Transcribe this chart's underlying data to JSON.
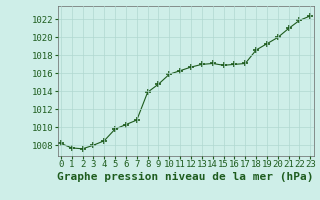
{
  "x": [
    0,
    1,
    2,
    3,
    4,
    5,
    6,
    7,
    8,
    9,
    10,
    11,
    12,
    13,
    14,
    15,
    16,
    17,
    18,
    19,
    20,
    21,
    22,
    23
  ],
  "y": [
    1008.2,
    1007.7,
    1007.6,
    1008.0,
    1008.5,
    1009.8,
    1010.3,
    1010.8,
    1013.9,
    1014.8,
    1015.9,
    1016.3,
    1016.7,
    1017.0,
    1017.1,
    1016.9,
    1017.0,
    1017.1,
    1018.6,
    1019.3,
    1020.0,
    1021.0,
    1021.9,
    1022.4
  ],
  "line_color": "#1e5c1e",
  "marker": "+",
  "marker_size": 5,
  "marker_linewidth": 1.2,
  "bg_color": "#ceeee8",
  "grid_color": "#b0d8d0",
  "title": "Graphe pression niveau de la mer (hPa)",
  "ylabel_ticks": [
    1008,
    1010,
    1012,
    1014,
    1016,
    1018,
    1020,
    1022
  ],
  "xlabel_ticks": [
    0,
    1,
    2,
    3,
    4,
    5,
    6,
    7,
    8,
    9,
    10,
    11,
    12,
    13,
    14,
    15,
    16,
    17,
    18,
    19,
    20,
    21,
    22,
    23
  ],
  "ylim": [
    1006.8,
    1023.5
  ],
  "xlim": [
    -0.3,
    23.3
  ],
  "title_fontsize": 8,
  "tick_fontsize": 6.5,
  "title_color": "#1e5c1e",
  "tick_color": "#1e5c1e",
  "spine_color": "#666666"
}
